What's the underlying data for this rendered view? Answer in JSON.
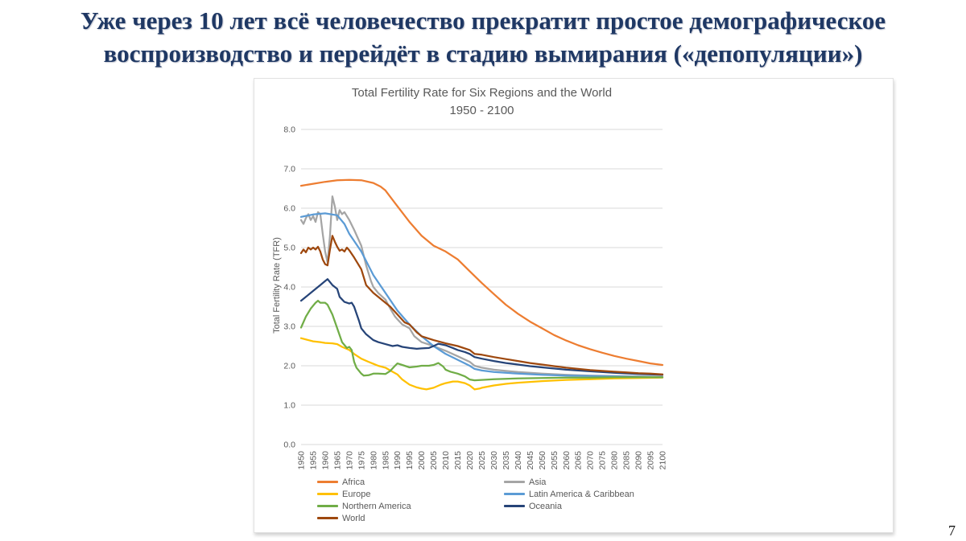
{
  "slide": {
    "title_lines": [
      "Уже через 10 лет всё человечество прекратит простое демографическое",
      "воспроизводство и перейдёт в стадию вымирания («депопуляции»)"
    ],
    "title_color": "#1f3864",
    "page_number": "7"
  },
  "chart_data": {
    "type": "line",
    "title": "Total Fertility Rate for Six Regions and the World",
    "subtitle": "1950 - 2100",
    "ylabel": "Total Fertility Rate (TFR)",
    "xlabel": "",
    "xlim": [
      1950,
      2100
    ],
    "ylim": [
      0,
      8
    ],
    "grid": "horizontal",
    "legend_position": "bottom-two-columns",
    "text_color": "#595959",
    "grid_color": "#d9d9d9",
    "y_tick_labels": [
      "0.0",
      "1.0",
      "2.0",
      "3.0",
      "4.0",
      "5.0",
      "6.0",
      "7.0",
      "8.0"
    ],
    "x_tick_labels": [
      "1950",
      "1955",
      "1960",
      "1965",
      "1970",
      "1975",
      "1980",
      "1985",
      "1990",
      "1995",
      "2000",
      "2005",
      "2010",
      "2015",
      "2020",
      "2025",
      "2030",
      "2035",
      "2040",
      "2045",
      "2050",
      "2055",
      "2060",
      "2065",
      "2070",
      "2075",
      "2080",
      "2085",
      "2090",
      "2095",
      "2100"
    ],
    "series": [
      {
        "name": "Africa",
        "color": "#ED7D31",
        "points": [
          [
            1950,
            6.57
          ],
          [
            1955,
            6.62
          ],
          [
            1960,
            6.67
          ],
          [
            1965,
            6.71
          ],
          [
            1970,
            6.72
          ],
          [
            1975,
            6.71
          ],
          [
            1980,
            6.64
          ],
          [
            1983,
            6.55
          ],
          [
            1985,
            6.45
          ],
          [
            1990,
            6.05
          ],
          [
            1995,
            5.65
          ],
          [
            2000,
            5.3
          ],
          [
            2005,
            5.05
          ],
          [
            2010,
            4.9
          ],
          [
            2015,
            4.7
          ],
          [
            2020,
            4.4
          ],
          [
            2025,
            4.1
          ],
          [
            2030,
            3.82
          ],
          [
            2035,
            3.55
          ],
          [
            2040,
            3.32
          ],
          [
            2045,
            3.12
          ],
          [
            2050,
            2.95
          ],
          [
            2055,
            2.78
          ],
          [
            2060,
            2.64
          ],
          [
            2065,
            2.52
          ],
          [
            2070,
            2.42
          ],
          [
            2075,
            2.33
          ],
          [
            2080,
            2.25
          ],
          [
            2085,
            2.18
          ],
          [
            2090,
            2.12
          ],
          [
            2095,
            2.06
          ],
          [
            2100,
            2.02
          ]
        ]
      },
      {
        "name": "Asia",
        "color": "#A5A5A5",
        "points": [
          [
            1950,
            5.7
          ],
          [
            1951,
            5.6
          ],
          [
            1952,
            5.75
          ],
          [
            1953,
            5.85
          ],
          [
            1954,
            5.7
          ],
          [
            1955,
            5.8
          ],
          [
            1956,
            5.65
          ],
          [
            1957,
            5.9
          ],
          [
            1958,
            5.85
          ],
          [
            1959,
            5.35
          ],
          [
            1960,
            4.9
          ],
          [
            1961,
            4.62
          ],
          [
            1962,
            5.3
          ],
          [
            1963,
            6.3
          ],
          [
            1964,
            6.05
          ],
          [
            1965,
            5.7
          ],
          [
            1966,
            5.95
          ],
          [
            1967,
            5.85
          ],
          [
            1968,
            5.9
          ],
          [
            1969,
            5.8
          ],
          [
            1970,
            5.7
          ],
          [
            1972,
            5.45
          ],
          [
            1975,
            5.05
          ],
          [
            1977,
            4.55
          ],
          [
            1979,
            4.15
          ],
          [
            1980,
            4.0
          ],
          [
            1982,
            3.85
          ],
          [
            1985,
            3.68
          ],
          [
            1987,
            3.45
          ],
          [
            1989,
            3.25
          ],
          [
            1990,
            3.18
          ],
          [
            1992,
            3.05
          ],
          [
            1995,
            2.95
          ],
          [
            1997,
            2.75
          ],
          [
            2000,
            2.6
          ],
          [
            2005,
            2.5
          ],
          [
            2010,
            2.38
          ],
          [
            2015,
            2.24
          ],
          [
            2020,
            2.1
          ],
          [
            2022,
            2.0
          ],
          [
            2025,
            1.95
          ],
          [
            2030,
            1.9
          ],
          [
            2040,
            1.84
          ],
          [
            2050,
            1.8
          ],
          [
            2060,
            1.77
          ],
          [
            2070,
            1.75
          ],
          [
            2080,
            1.74
          ],
          [
            2090,
            1.73
          ],
          [
            2100,
            1.72
          ]
        ]
      },
      {
        "name": "Europe",
        "color": "#FFC000",
        "points": [
          [
            1950,
            2.7
          ],
          [
            1953,
            2.65
          ],
          [
            1955,
            2.62
          ],
          [
            1958,
            2.6
          ],
          [
            1960,
            2.58
          ],
          [
            1963,
            2.57
          ],
          [
            1965,
            2.55
          ],
          [
            1967,
            2.48
          ],
          [
            1970,
            2.4
          ],
          [
            1972,
            2.3
          ],
          [
            1975,
            2.18
          ],
          [
            1978,
            2.1
          ],
          [
            1980,
            2.05
          ],
          [
            1982,
            2.0
          ],
          [
            1985,
            1.95
          ],
          [
            1987,
            1.88
          ],
          [
            1990,
            1.78
          ],
          [
            1992,
            1.65
          ],
          [
            1995,
            1.52
          ],
          [
            1998,
            1.45
          ],
          [
            2000,
            1.42
          ],
          [
            2002,
            1.4
          ],
          [
            2005,
            1.44
          ],
          [
            2008,
            1.52
          ],
          [
            2010,
            1.56
          ],
          [
            2013,
            1.6
          ],
          [
            2015,
            1.6
          ],
          [
            2018,
            1.56
          ],
          [
            2020,
            1.5
          ],
          [
            2022,
            1.4
          ],
          [
            2024,
            1.42
          ],
          [
            2025,
            1.44
          ],
          [
            2030,
            1.5
          ],
          [
            2035,
            1.54
          ],
          [
            2040,
            1.57
          ],
          [
            2050,
            1.61
          ],
          [
            2060,
            1.64
          ],
          [
            2070,
            1.66
          ],
          [
            2080,
            1.68
          ],
          [
            2090,
            1.69
          ],
          [
            2100,
            1.7
          ]
        ]
      },
      {
        "name": "Latin America & Caribbean",
        "color": "#5B9BD5",
        "points": [
          [
            1950,
            5.78
          ],
          [
            1955,
            5.84
          ],
          [
            1960,
            5.87
          ],
          [
            1965,
            5.82
          ],
          [
            1968,
            5.6
          ],
          [
            1970,
            5.35
          ],
          [
            1975,
            4.9
          ],
          [
            1980,
            4.3
          ],
          [
            1985,
            3.85
          ],
          [
            1990,
            3.4
          ],
          [
            1995,
            3.05
          ],
          [
            2000,
            2.75
          ],
          [
            2005,
            2.5
          ],
          [
            2010,
            2.3
          ],
          [
            2015,
            2.15
          ],
          [
            2020,
            2.0
          ],
          [
            2022,
            1.92
          ],
          [
            2025,
            1.88
          ],
          [
            2030,
            1.84
          ],
          [
            2040,
            1.8
          ],
          [
            2050,
            1.77
          ],
          [
            2060,
            1.75
          ],
          [
            2070,
            1.74
          ],
          [
            2080,
            1.73
          ],
          [
            2090,
            1.72
          ],
          [
            2100,
            1.71
          ]
        ]
      },
      {
        "name": "Northern America",
        "color": "#70AD47",
        "points": [
          [
            1950,
            2.97
          ],
          [
            1952,
            3.25
          ],
          [
            1954,
            3.45
          ],
          [
            1956,
            3.6
          ],
          [
            1957,
            3.65
          ],
          [
            1958,
            3.6
          ],
          [
            1960,
            3.6
          ],
          [
            1961,
            3.55
          ],
          [
            1963,
            3.3
          ],
          [
            1965,
            2.95
          ],
          [
            1967,
            2.6
          ],
          [
            1969,
            2.45
          ],
          [
            1970,
            2.48
          ],
          [
            1971,
            2.4
          ],
          [
            1972,
            2.1
          ],
          [
            1973,
            1.95
          ],
          [
            1975,
            1.8
          ],
          [
            1976,
            1.75
          ],
          [
            1978,
            1.76
          ],
          [
            1980,
            1.8
          ],
          [
            1982,
            1.8
          ],
          [
            1985,
            1.79
          ],
          [
            1987,
            1.87
          ],
          [
            1989,
            2.0
          ],
          [
            1990,
            2.06
          ],
          [
            1992,
            2.02
          ],
          [
            1995,
            1.96
          ],
          [
            1998,
            1.98
          ],
          [
            2000,
            2.0
          ],
          [
            2003,
            2.0
          ],
          [
            2005,
            2.02
          ],
          [
            2007,
            2.07
          ],
          [
            2009,
            1.98
          ],
          [
            2010,
            1.9
          ],
          [
            2012,
            1.85
          ],
          [
            2015,
            1.8
          ],
          [
            2018,
            1.73
          ],
          [
            2020,
            1.65
          ],
          [
            2022,
            1.63
          ],
          [
            2025,
            1.64
          ],
          [
            2030,
            1.66
          ],
          [
            2040,
            1.68
          ],
          [
            2050,
            1.69
          ],
          [
            2060,
            1.7
          ],
          [
            2070,
            1.7
          ],
          [
            2080,
            1.71
          ],
          [
            2090,
            1.71
          ],
          [
            2100,
            1.71
          ]
        ]
      },
      {
        "name": "Oceania",
        "color": "#264478",
        "points": [
          [
            1950,
            3.65
          ],
          [
            1952,
            3.75
          ],
          [
            1955,
            3.9
          ],
          [
            1958,
            4.05
          ],
          [
            1960,
            4.15
          ],
          [
            1961,
            4.2
          ],
          [
            1963,
            4.05
          ],
          [
            1965,
            3.95
          ],
          [
            1966,
            3.75
          ],
          [
            1968,
            3.62
          ],
          [
            1970,
            3.58
          ],
          [
            1971,
            3.6
          ],
          [
            1972,
            3.5
          ],
          [
            1974,
            3.15
          ],
          [
            1975,
            2.95
          ],
          [
            1977,
            2.8
          ],
          [
            1980,
            2.65
          ],
          [
            1982,
            2.6
          ],
          [
            1985,
            2.55
          ],
          [
            1988,
            2.5
          ],
          [
            1990,
            2.52
          ],
          [
            1992,
            2.48
          ],
          [
            1995,
            2.45
          ],
          [
            1998,
            2.43
          ],
          [
            2000,
            2.44
          ],
          [
            2003,
            2.45
          ],
          [
            2005,
            2.5
          ],
          [
            2007,
            2.56
          ],
          [
            2010,
            2.52
          ],
          [
            2013,
            2.45
          ],
          [
            2015,
            2.4
          ],
          [
            2018,
            2.35
          ],
          [
            2020,
            2.3
          ],
          [
            2022,
            2.22
          ],
          [
            2025,
            2.18
          ],
          [
            2030,
            2.12
          ],
          [
            2035,
            2.07
          ],
          [
            2040,
            2.03
          ],
          [
            2045,
            1.99
          ],
          [
            2050,
            1.96
          ],
          [
            2060,
            1.9
          ],
          [
            2070,
            1.86
          ],
          [
            2080,
            1.82
          ],
          [
            2090,
            1.79
          ],
          [
            2100,
            1.77
          ]
        ]
      },
      {
        "name": "World",
        "color": "#9E480E",
        "points": [
          [
            1950,
            4.86
          ],
          [
            1951,
            4.95
          ],
          [
            1952,
            4.88
          ],
          [
            1953,
            5.0
          ],
          [
            1954,
            4.95
          ],
          [
            1955,
            5.0
          ],
          [
            1956,
            4.95
          ],
          [
            1957,
            5.02
          ],
          [
            1958,
            4.9
          ],
          [
            1959,
            4.7
          ],
          [
            1960,
            4.58
          ],
          [
            1961,
            4.55
          ],
          [
            1962,
            4.95
          ],
          [
            1963,
            5.3
          ],
          [
            1964,
            5.15
          ],
          [
            1965,
            5.02
          ],
          [
            1966,
            4.92
          ],
          [
            1967,
            4.95
          ],
          [
            1968,
            4.9
          ],
          [
            1969,
            5.0
          ],
          [
            1970,
            4.93
          ],
          [
            1972,
            4.75
          ],
          [
            1975,
            4.45
          ],
          [
            1977,
            4.05
          ],
          [
            1980,
            3.85
          ],
          [
            1982,
            3.75
          ],
          [
            1985,
            3.6
          ],
          [
            1987,
            3.5
          ],
          [
            1990,
            3.3
          ],
          [
            1993,
            3.1
          ],
          [
            1995,
            3.05
          ],
          [
            1998,
            2.85
          ],
          [
            2000,
            2.75
          ],
          [
            2005,
            2.65
          ],
          [
            2010,
            2.57
          ],
          [
            2015,
            2.5
          ],
          [
            2020,
            2.4
          ],
          [
            2022,
            2.3
          ],
          [
            2025,
            2.28
          ],
          [
            2030,
            2.22
          ],
          [
            2035,
            2.17
          ],
          [
            2040,
            2.12
          ],
          [
            2045,
            2.07
          ],
          [
            2050,
            2.03
          ],
          [
            2055,
            1.99
          ],
          [
            2060,
            1.95
          ],
          [
            2065,
            1.92
          ],
          [
            2070,
            1.89
          ],
          [
            2075,
            1.87
          ],
          [
            2080,
            1.85
          ],
          [
            2085,
            1.83
          ],
          [
            2090,
            1.81
          ],
          [
            2095,
            1.8
          ],
          [
            2100,
            1.78
          ]
        ]
      }
    ]
  }
}
